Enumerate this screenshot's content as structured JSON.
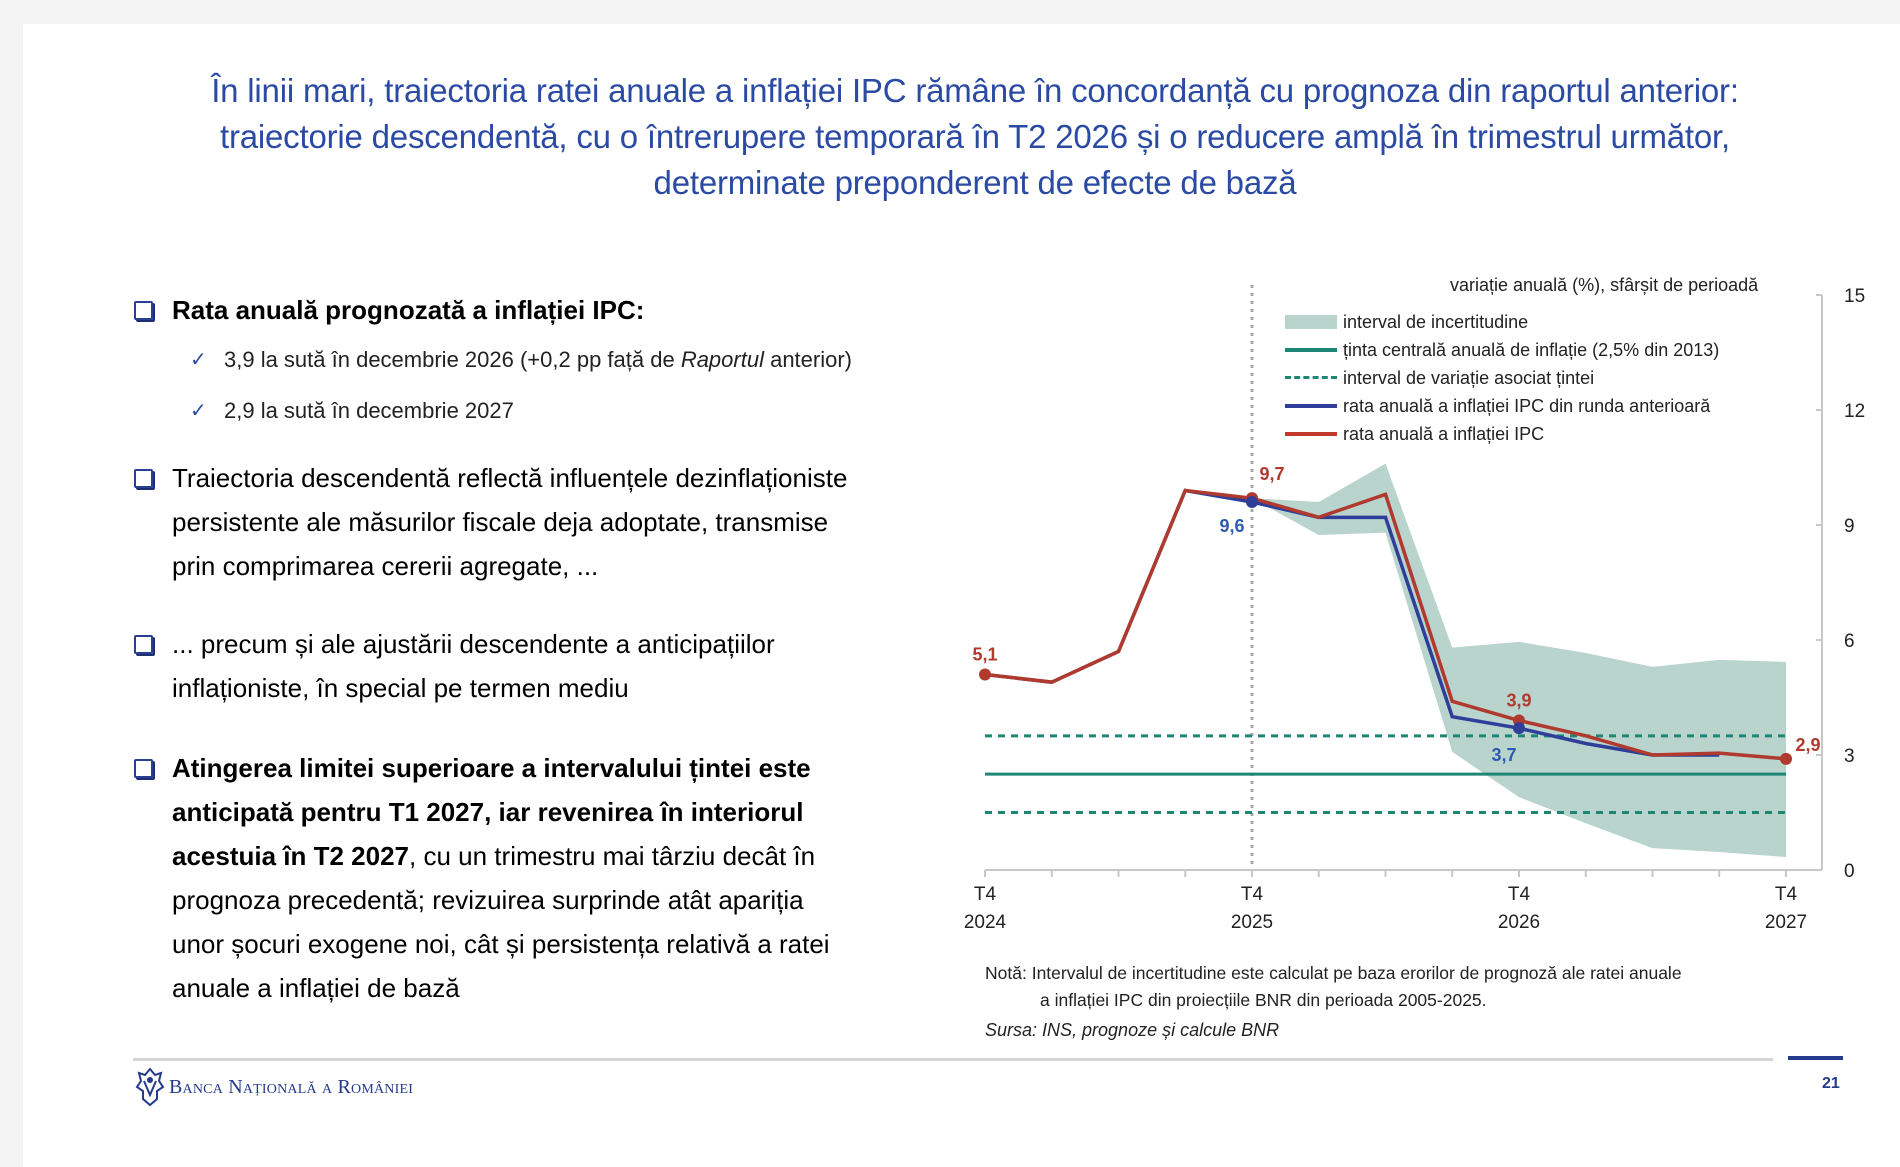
{
  "slide": {
    "title_lines": [
      "În linii mari, traiectoria ratei anuale a inflației IPC rămâne în concordanță cu prognoza din raportul anterior:",
      "traiectorie descendentă, cu o întrerupere temporară în T2 2026 și o reducere amplă în trimestrul următor,",
      "determinate preponderent de efecte de bază"
    ],
    "bullets": [
      {
        "text": "Rata anuală prognozată a inflației IPC:",
        "sub": [
          {
            "pre": "3,9 la sută în decembrie 2026 (+0,2 pp față de ",
            "italic": "Raportul",
            "post": " anterior)"
          },
          {
            "pre": "2,9 la sută în decembrie 2027",
            "italic": "",
            "post": ""
          }
        ]
      },
      {
        "lines": [
          "Traiectoria descendentă reflectă influențele dezinflaționiste",
          "persistente ale măsurilor fiscale deja adoptate, transmise",
          "prin comprimarea cererii agregate, ..."
        ]
      },
      {
        "lines": [
          "... precum și ale ajustării descendente a anticipațiilor",
          "inflaționiste, în special pe termen mediu"
        ]
      },
      {
        "bold_lines": [
          "Atingerea limitei superioare a intervalului țintei este",
          "anticipată pentru T1 2027, iar revenirea în interiorul",
          "acestuia în T2 2027"
        ],
        "rest_first": ", cu un trimestru mai târziu decât în",
        "lines": [
          "prognoza precedentă; revizuirea surprinde atât apariția",
          "unor șocuri exogene noi, cât și persistența relativă a ratei",
          "anuale a inflației de bază"
        ]
      }
    ],
    "note_label": "Notă:",
    "note_line1": "Intervalul de incertitudine este calculat pe baza erorilor de prognoză ale ratei anuale",
    "note_line2": "a inflației IPC din proiecțiile BNR din perioada 2005-2025.",
    "source": "Sursa: INS, prognoze și calcule BNR",
    "footer": {
      "bank_name": "Banca Națională a României",
      "page_number": "21",
      "logo_icon": "bnr-emblem-icon"
    }
  },
  "chart_data": {
    "type": "line",
    "title": "",
    "ylabel": "variație anuală (%), sfârșit de perioadă",
    "xlabel": "",
    "ylim": [
      0,
      15
    ],
    "y_ticks": [
      0,
      3,
      6,
      9,
      12,
      15
    ],
    "y_axis_side": "right",
    "x": [
      "T4 2024",
      "T1 2025",
      "T2 2025",
      "T3 2025",
      "T4 2025",
      "T1 2026",
      "T2 2026",
      "T3 2026",
      "T4 2026",
      "T1 2027",
      "T2 2027",
      "T3 2027",
      "T4 2027"
    ],
    "x_tick_labels": [
      {
        "q": "T4",
        "year": "2024",
        "index": 0
      },
      {
        "q": "T4",
        "year": "2025",
        "index": 4
      },
      {
        "q": "T4",
        "year": "2026",
        "index": 8
      },
      {
        "q": "T4",
        "year": "2027",
        "index": 12
      }
    ],
    "forecast_start_index": 4,
    "legend": {
      "placement": "top-right",
      "items": [
        {
          "label": "interval de incertitudine",
          "kind": "band",
          "color": "#b9d3cd"
        },
        {
          "label": "ținta centrală anuală de inflație (2,5% din 2013)",
          "kind": "solid",
          "color": "#1e8774"
        },
        {
          "label": "interval de variație asociat țintei",
          "kind": "dash",
          "color": "#1e8774"
        },
        {
          "label": "rata anuală a inflației IPC din runda anterioară",
          "kind": "solid",
          "color": "#2e3f9a"
        },
        {
          "label": "rata anuală a inflației IPC",
          "kind": "solid",
          "color": "#c0392b"
        }
      ]
    },
    "series": [
      {
        "name": "rata anuală a inflației IPC",
        "color": "#b03a2e",
        "values": [
          5.1,
          4.9,
          5.7,
          9.9,
          9.7,
          9.2,
          9.8,
          4.4,
          3.9,
          3.5,
          3.0,
          3.05,
          2.9
        ]
      },
      {
        "name": "rata anuală a inflației IPC din runda anterioară",
        "color": "#2e3f9a",
        "values": [
          5.1,
          4.9,
          5.7,
          9.9,
          9.6,
          9.2,
          9.2,
          4.0,
          3.7,
          3.3,
          3.0,
          3.0,
          null
        ]
      }
    ],
    "uncertainty_band": {
      "name": "interval de incertitudine",
      "start_index": 4,
      "upper": [
        9.7,
        9.6,
        10.6,
        5.8,
        5.95,
        5.66,
        5.3,
        5.48,
        5.43
      ],
      "lower": [
        9.7,
        8.74,
        8.8,
        3.08,
        1.9,
        1.22,
        0.57,
        0.47,
        0.34
      ]
    },
    "target": {
      "central": 2.5,
      "upper": 3.5,
      "lower": 1.5
    },
    "data_labels": [
      {
        "series": 0,
        "index": 0,
        "text": "5,1",
        "color": "#b03a2e"
      },
      {
        "series": 0,
        "index": 4,
        "text": "9,7",
        "color": "#b03a2e"
      },
      {
        "series": 1,
        "index": 4,
        "text": "9,6",
        "color": "#2e5bb0"
      },
      {
        "series": 0,
        "index": 8,
        "text": "3,9",
        "color": "#b03a2e"
      },
      {
        "series": 1,
        "index": 8,
        "text": "3,7",
        "color": "#2e5bb0"
      },
      {
        "series": 0,
        "index": 12,
        "text": "2,9",
        "color": "#b03a2e"
      }
    ],
    "grid": false
  }
}
